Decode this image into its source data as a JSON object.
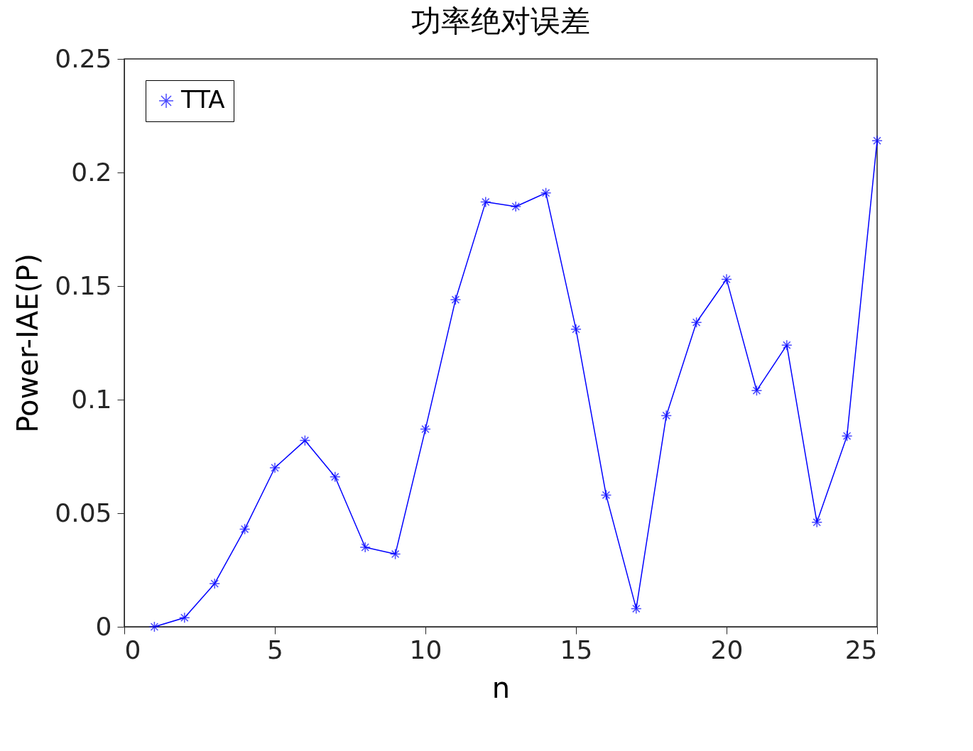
{
  "chart_data": {
    "type": "line",
    "title": "功率绝对误差",
    "xlabel": "n",
    "ylabel": "Power-IAE(P)",
    "x": [
      1,
      2,
      3,
      4,
      5,
      6,
      7,
      8,
      9,
      10,
      11,
      12,
      13,
      14,
      15,
      16,
      17,
      18,
      19,
      20,
      21,
      22,
      23,
      24,
      25
    ],
    "series": [
      {
        "name": "TTA",
        "color": "#0000ff",
        "values": [
          0,
          0.004,
          0.019,
          0.043,
          0.07,
          0.082,
          0.066,
          0.035,
          0.032,
          0.087,
          0.144,
          0.187,
          0.185,
          0.191,
          0.131,
          0.058,
          0.008,
          0.093,
          0.134,
          0.153,
          0.104,
          0.124,
          0.046,
          0.084,
          0.214
        ]
      }
    ],
    "xlim": [
      0,
      25
    ],
    "xticks": [
      0,
      5,
      10,
      15,
      20,
      25
    ],
    "ylim": [
      0,
      0.25
    ],
    "yticks": [
      0,
      0.05,
      0.1,
      0.15,
      0.2,
      0.25
    ],
    "grid": false,
    "legend": "top left",
    "marker": "cross",
    "line_style": "solid"
  }
}
